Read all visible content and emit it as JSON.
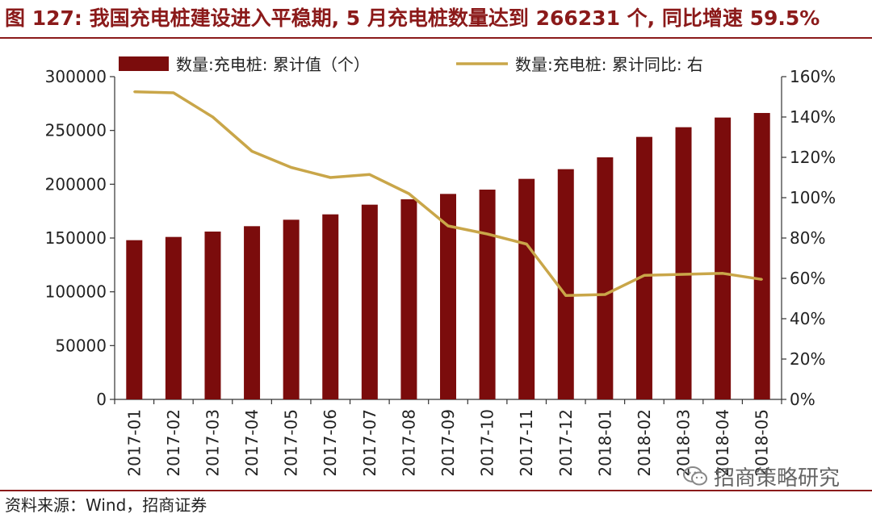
{
  "figure": {
    "title": "图 127: 我国充电桩建设进入平稳期, 5 月充电桩数量达到 266231 个, 同比增速 59.5%",
    "source": "资料来源：Wind，招商证券",
    "watermark": "招商策略研究",
    "watermark_icon": "wechat-icon",
    "accent_color": "#8B1A1A"
  },
  "chart_data": {
    "type": "bar",
    "categories": [
      "2017-01",
      "2017-02",
      "2017-03",
      "2017-04",
      "2017-05",
      "2017-06",
      "2017-07",
      "2017-08",
      "2017-09",
      "2017-10",
      "2017-11",
      "2017-12",
      "2018-01",
      "2018-02",
      "2018-03",
      "2018-04",
      "2018-05"
    ],
    "series": [
      {
        "name": "数量:充电桩: 累计值（个）",
        "type": "bar",
        "axis": "left",
        "color": "#7B0C0C",
        "values": [
          148000,
          151000,
          156000,
          161000,
          167000,
          172000,
          181000,
          186000,
          191000,
          195000,
          205000,
          214000,
          225000,
          244000,
          253000,
          262000,
          266231
        ]
      },
      {
        "name": "数量:充电桩: 累计同比: 右",
        "type": "line",
        "axis": "right",
        "color": "#C9A649",
        "values": [
          152.5,
          152,
          140,
          123,
          115,
          110,
          111.5,
          102,
          86,
          82,
          77,
          51.5,
          52,
          61.5,
          62,
          62.5,
          59.5
        ]
      }
    ],
    "y_left": {
      "min": 0,
      "max": 300000,
      "ticks": [
        "0",
        "50000",
        "100000",
        "150000",
        "200000",
        "250000",
        "300000"
      ]
    },
    "y_right": {
      "min": 0,
      "max": 160,
      "ticks": [
        "0%",
        "20%",
        "40%",
        "60%",
        "80%",
        "100%",
        "120%",
        "140%",
        "160%"
      ]
    },
    "grid": false,
    "legend_position": "top"
  }
}
